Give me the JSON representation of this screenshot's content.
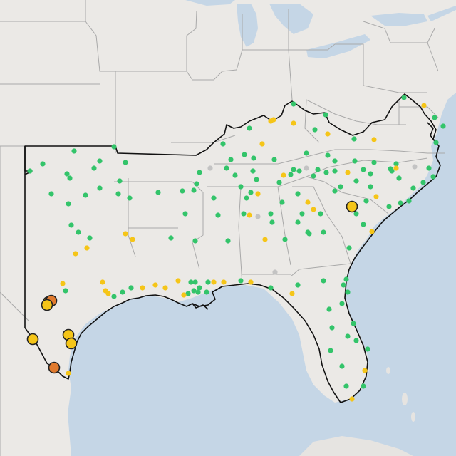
{
  "map": {
    "region": "southeastern-united-states",
    "colors": {
      "land": "#ebe9e6",
      "water": "#c5d6e6",
      "state_border": "#a8a8a8",
      "outline": "#111111",
      "marker_stroke": "#222222"
    },
    "legend_colors": {
      "green": "#33c46a",
      "yellow": "#f5c518",
      "orange": "#e07a2e",
      "gray": "#c3c3c3"
    },
    "markers": {
      "large_yellow": 6,
      "large_orange": 2,
      "small_green": 160,
      "small_yellow": 45,
      "small_gray": 8
    }
  }
}
